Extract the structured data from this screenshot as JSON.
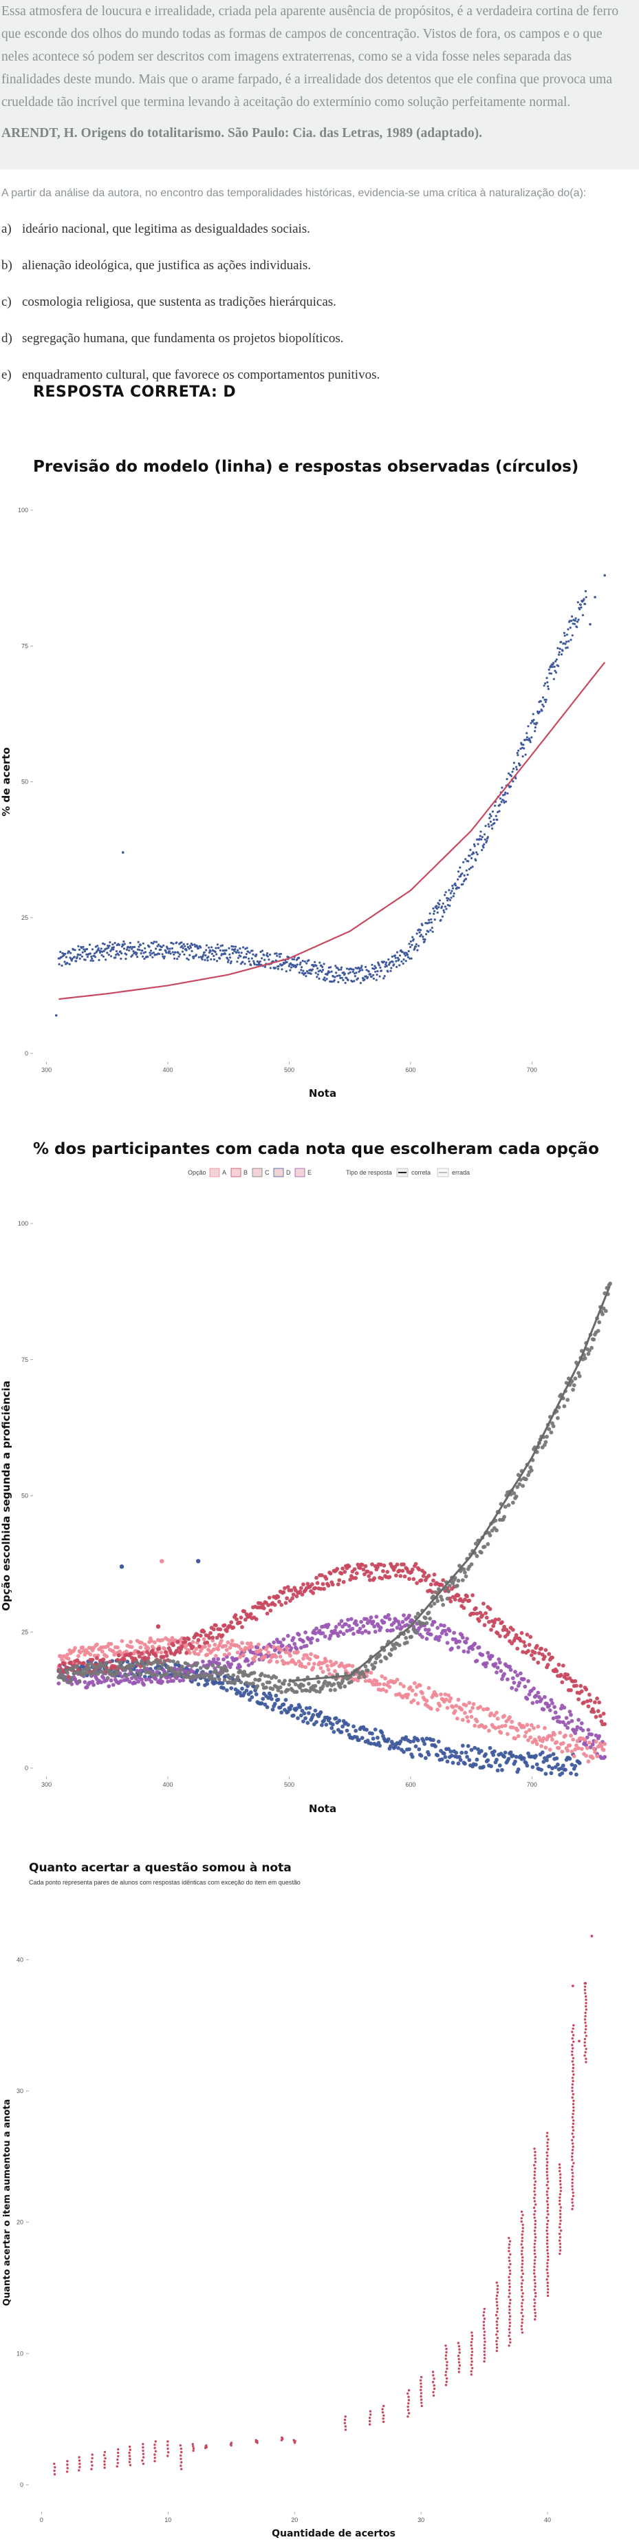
{
  "question": {
    "quote": "Essa atmosfera de loucura e irrealidade, criada pela aparente ausência de propósitos, é a verdadeira cortina de ferro que esconde dos olhos do mundo todas as formas de campos de concentração. Vistos de fora, os campos e o que neles acontece só podem ser descritos com imagens extraterrenas, como se a vida fosse neles separada das finalidades deste mundo. Mais que o arame farpado, é a irrealidade dos detentos que ele confina que provoca uma crueldade tão incrível que termina levando à aceitação do extermínio como solução perfeitamente normal.",
    "source": "ARENDT, H. Origens do totalitarismo. São Paulo: Cia. das Letras, 1989 (adaptado).",
    "stem": "A partir da análise da autora, no encontro das temporalidades históricas, evidencia-se uma crítica à naturalização do(a):",
    "options": [
      {
        "letter": "a)",
        "text": "ideário nacional, que legitima as desigualdades sociais."
      },
      {
        "letter": "b)",
        "text": "alienação ideológica, que justifica as ações individuais."
      },
      {
        "letter": "c)",
        "text": "cosmologia religiosa, que sustenta as tradições hierárquicas."
      },
      {
        "letter": "d)",
        "text": "segregação humana, que fundamenta os projetos biopolíticos."
      },
      {
        "letter": "e)",
        "text": "enquadramento cultural, que favorece os comportamentos punitivos."
      }
    ],
    "answer": "RESPOSTA CORRETA: D"
  },
  "colors": {
    "blue": "#3f5a9c",
    "red": "#c8485f",
    "pink": "#f08a98",
    "purple": "#9a59b4",
    "gray": "#777777",
    "model_line": "#c8485f",
    "points": "#c8485f"
  },
  "chart_data": [
    {
      "type": "scatter",
      "title": "Previsão do modelo (linha) e respostas observadas (círculos)",
      "xlabel": "Nota",
      "ylabel": "% de acerto",
      "x_ticks": [
        300,
        400,
        500,
        600,
        700
      ],
      "y_ticks": [
        0,
        25,
        50,
        75,
        100
      ],
      "xlim": [
        290,
        765
      ],
      "ylim": [
        0,
        100
      ],
      "observed_description_points": [],
      "observed": {
        "outliers": [
          [
            308,
            7
          ],
          [
            363,
            37
          ]
        ],
        "segments": [
          {
            "x": [
              310,
              330,
              360,
              400,
              440,
              480,
              500,
              520,
              540,
              560,
              580,
              600,
              620,
              640,
              660,
              680,
              700,
              720,
              740,
              760
            ],
            "y": [
              17,
              18.5,
              19,
              19,
              18.5,
              17.5,
              16.5,
              15.5,
              14.5,
              14.5,
              15.5,
              19,
              25,
              32,
              40,
              49,
              60,
              72,
              82,
              88
            ]
          }
        ]
      },
      "model": {
        "x": [
          310,
          350,
          400,
          450,
          500,
          550,
          600,
          650,
          700,
          760
        ],
        "y": [
          10,
          11,
          12.5,
          14.5,
          17.5,
          22.5,
          30,
          41,
          55,
          72
        ]
      }
    },
    {
      "type": "scatter",
      "title": "% dos participantes com cada nota que escolheram cada opção",
      "xlabel": "Nota",
      "ylabel": "Opção escolhida segunda a proficiência",
      "x_ticks": [
        300,
        400,
        500,
        600,
        700
      ],
      "y_ticks": [
        0,
        25,
        50,
        75,
        100
      ],
      "xlim": [
        290,
        765
      ],
      "ylim": [
        0,
        100
      ],
      "legend": {
        "option_title": "Opção",
        "options": [
          "A",
          "B",
          "C",
          "D",
          "E"
        ],
        "type_title": "Tipo de resposta",
        "types": [
          "correta",
          "errada"
        ]
      },
      "series": [
        {
          "name": "A",
          "color_key": "pink",
          "x": [
            310,
            350,
            400,
            450,
            500,
            550,
            600,
            650,
            700,
            750,
            760
          ],
          "y": [
            20,
            22,
            22.5,
            22,
            20.5,
            17.5,
            14,
            10,
            6,
            3,
            2.5
          ]
        },
        {
          "name": "B",
          "color_key": "red",
          "x": [
            310,
            350,
            400,
            450,
            500,
            550,
            600,
            650,
            700,
            750,
            760
          ],
          "y": [
            18,
            19,
            21,
            26,
            32,
            36,
            36,
            30,
            22,
            12,
            9
          ]
        },
        {
          "name": "C",
          "color_key": "blue",
          "x": [
            310,
            350,
            400,
            450,
            500,
            550,
            600,
            650,
            700,
            740
          ],
          "y": [
            18,
            18.5,
            18,
            15.5,
            11,
            7,
            4,
            2,
            1,
            0.5
          ]
        },
        {
          "name": "D",
          "color_key": "gray",
          "x": [
            310,
            350,
            400,
            450,
            500,
            550,
            600,
            650,
            700,
            740,
            765
          ],
          "y": [
            17,
            18,
            18.5,
            17,
            15,
            16,
            25,
            38,
            56,
            74,
            88
          ]
        },
        {
          "name": "E",
          "color_key": "purple",
          "x": [
            310,
            350,
            400,
            450,
            500,
            550,
            600,
            650,
            700,
            750,
            760
          ],
          "y": [
            16,
            16.5,
            17,
            19,
            23,
            26,
            27,
            22,
            14,
            5,
            3
          ]
        }
      ],
      "outliers": [
        [
          362,
          37,
          "blue"
        ],
        [
          395,
          38,
          "pink"
        ],
        [
          425,
          38,
          "blue"
        ],
        [
          392,
          26,
          "red"
        ]
      ]
    },
    {
      "type": "scatter",
      "title": "Quanto acertar a questão somou à nota",
      "subtitle": "Cada ponto representa pares de alunos com respostas idênticas com exceção do item em questão",
      "xlabel": "Quantidade de acertos",
      "ylabel": "Quanto acertar o item aumentou a anota",
      "x_ticks": [
        0,
        10,
        20,
        30,
        40
      ],
      "y_ticks": [
        0,
        10,
        20,
        30,
        40
      ],
      "xlim": [
        -1,
        45
      ],
      "ylim": [
        -1,
        44
      ],
      "columns": [
        {
          "x": 1,
          "ymin": 0.8,
          "ymax": 1.6
        },
        {
          "x": 2,
          "ymin": 1,
          "ymax": 1.8
        },
        {
          "x": 3,
          "ymin": 1.1,
          "ymax": 2.1
        },
        {
          "x": 4,
          "ymin": 1.2,
          "ymax": 2.3
        },
        {
          "x": 5,
          "ymin": 1.3,
          "ymax": 2.5
        },
        {
          "x": 6,
          "ymin": 1.4,
          "ymax": 2.7
        },
        {
          "x": 7,
          "ymin": 1.5,
          "ymax": 2.9
        },
        {
          "x": 8,
          "ymin": 1.6,
          "ymax": 3.1
        },
        {
          "x": 9,
          "ymin": 1.8,
          "ymax": 3.3
        },
        {
          "x": 10,
          "ymin": 2.2,
          "ymax": 3.3
        },
        {
          "x": 11,
          "ymin": 1.2,
          "ymax": 3.0
        },
        {
          "x": 12,
          "ymin": 2.6,
          "ymax": 3.1
        },
        {
          "x": 13,
          "ymin": 2.8,
          "ymax": 3.0
        },
        {
          "x": 15,
          "ymin": 3.0,
          "ymax": 3.2
        },
        {
          "x": 17,
          "ymin": 3.2,
          "ymax": 3.4
        },
        {
          "x": 19,
          "ymin": 3.4,
          "ymax": 3.6
        },
        {
          "x": 20,
          "ymin": 3.2,
          "ymax": 3.4
        },
        {
          "x": 24,
          "ymin": 4.2,
          "ymax": 5.2
        },
        {
          "x": 26,
          "ymin": 4.6,
          "ymax": 5.6
        },
        {
          "x": 27,
          "ymin": 4.8,
          "ymax": 6.0
        },
        {
          "x": 29,
          "ymin": 5.2,
          "ymax": 7.2
        },
        {
          "x": 30,
          "ymin": 6.0,
          "ymax": 8.2
        },
        {
          "x": 31,
          "ymin": 6.8,
          "ymax": 8.6
        },
        {
          "x": 32,
          "ymin": 7.6,
          "ymax": 10.6
        },
        {
          "x": 33,
          "ymin": 8.6,
          "ymax": 10.8
        },
        {
          "x": 34,
          "ymin": 8.4,
          "ymax": 11.6
        },
        {
          "x": 35,
          "ymin": 9.4,
          "ymax": 13.4
        },
        {
          "x": 36,
          "ymin": 10.2,
          "ymax": 15.4
        },
        {
          "x": 37,
          "ymin": 10.6,
          "ymax": 18.8
        },
        {
          "x": 38,
          "ymin": 11.6,
          "ymax": 20.8
        },
        {
          "x": 39,
          "ymin": 12.6,
          "ymax": 25.6
        },
        {
          "x": 40,
          "ymin": 14.4,
          "ymax": 26.8
        },
        {
          "x": 41,
          "ymin": 17.6,
          "ymax": 24.4
        },
        {
          "x": 42,
          "ymin": 21.0,
          "ymax": 35.0
        },
        {
          "x": 43,
          "ymin": 32.2,
          "ymax": 38.2
        }
      ],
      "extra_points": [
        [
          42,
          38.0
        ],
        [
          43.5,
          41.8
        ],
        [
          43,
          38.2
        ],
        [
          42.5,
          33.8
        ]
      ]
    }
  ]
}
